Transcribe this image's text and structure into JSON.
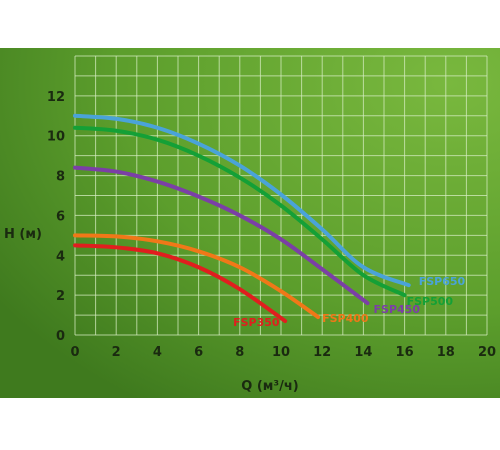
{
  "chart_data": {
    "type": "line",
    "xlabel": "Q (м³/ч)",
    "ylabel": "H (м)",
    "xlim": [
      0,
      20
    ],
    "ylim": [
      0,
      14
    ],
    "xticks": [
      "0",
      "2",
      "4",
      "6",
      "8",
      "10",
      "12",
      "14",
      "16",
      "18",
      "20"
    ],
    "yticks": [
      "0",
      "2",
      "4",
      "6",
      "8",
      "10",
      "12"
    ],
    "grid": true,
    "background": "#5c9e2c",
    "series": [
      {
        "name": "FSP650",
        "color": "#4aa3d8",
        "x": [
          0,
          2,
          4,
          6,
          8,
          10,
          12,
          14,
          16.2
        ],
        "y": [
          11.0,
          10.85,
          10.4,
          9.6,
          8.5,
          7.05,
          5.3,
          3.4,
          2.5
        ]
      },
      {
        "name": "FSP500",
        "color": "#14a036",
        "x": [
          0,
          2,
          4,
          6,
          8,
          10,
          12,
          14,
          16
        ],
        "y": [
          10.4,
          10.25,
          9.8,
          9.0,
          7.9,
          6.5,
          4.8,
          3.0,
          2.0
        ]
      },
      {
        "name": "FSP450",
        "color": "#7b3fa6",
        "x": [
          0,
          2,
          4,
          6,
          8,
          10,
          12,
          14.2
        ],
        "y": [
          8.4,
          8.2,
          7.7,
          6.95,
          6.0,
          4.8,
          3.3,
          1.6
        ]
      },
      {
        "name": "FSP400",
        "color": "#f07818",
        "x": [
          0,
          2,
          4,
          6,
          8,
          10,
          11.8
        ],
        "y": [
          5.0,
          4.95,
          4.7,
          4.2,
          3.4,
          2.2,
          0.9
        ]
      },
      {
        "name": "FSP350",
        "color": "#e01e1e",
        "x": [
          0,
          2,
          4,
          6,
          8,
          10.2
        ],
        "y": [
          4.5,
          4.4,
          4.1,
          3.4,
          2.3,
          0.7
        ]
      }
    ]
  }
}
